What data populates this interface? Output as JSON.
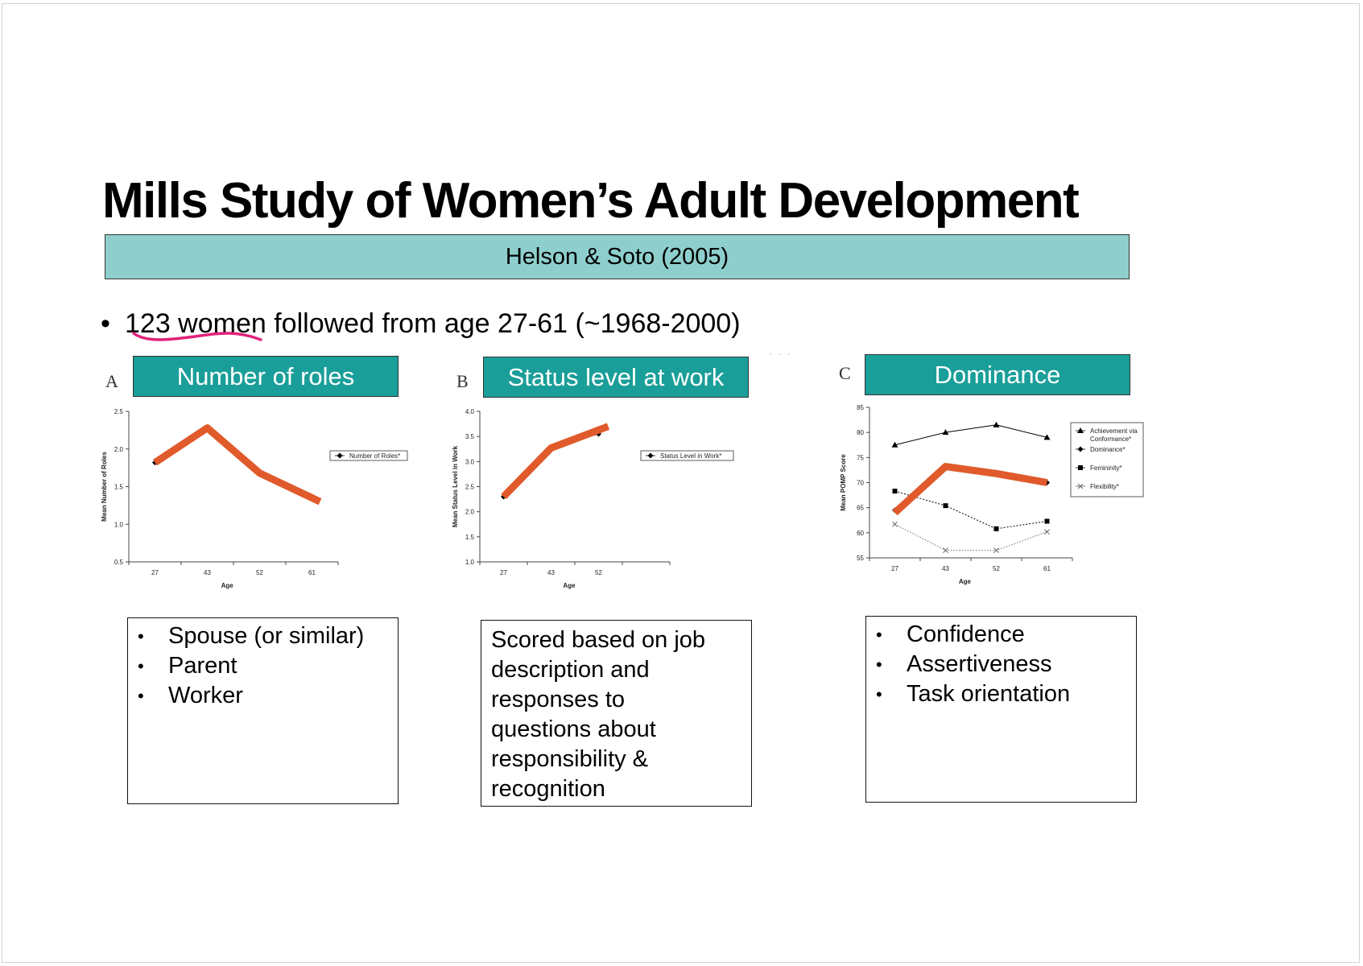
{
  "slide": {
    "title": "Mills Study of Women’s Adult Development",
    "citation": "Helson & Soto (2005)",
    "bullet_prefix": "•",
    "bullet_highlight": "123 women",
    "bullet_rest": " followed from age 27-61 (~1968-2000)",
    "annotation_color": "#e0237a",
    "accent_color": "#1a9e99",
    "banner_color": "#8ecfcd",
    "highlight_line_color": "#e05a2b"
  },
  "panels": [
    {
      "letter": "A",
      "label": "Number of roles",
      "box_items": [
        "Spouse (or similar)",
        "Parent",
        "Worker"
      ]
    },
    {
      "letter": "B",
      "label": "Status level at work",
      "box_text": [
        "Scored based on job",
        "description and",
        "responses to",
        "questions about",
        "responsibility &",
        "recognition"
      ]
    },
    {
      "letter": "C",
      "label": "Dominance",
      "box_items": [
        "Confidence",
        "Assertiveness",
        "Task orientation"
      ]
    }
  ],
  "chart_data": [
    {
      "type": "line",
      "xlabel": "Age",
      "ylabel": "Mean Number of Roles",
      "categories": [
        "27",
        "43",
        "52",
        "61"
      ],
      "yticks": [
        "0.5",
        "1.0",
        "1.5",
        "2.0",
        "2.5"
      ],
      "ylim": [
        0.5,
        2.5
      ],
      "legend": "right",
      "series": [
        {
          "name": "Number of Roles*",
          "values": [
            1.82,
            2.28,
            1.68,
            1.37
          ],
          "marker": "diamond",
          "color": "#000000"
        }
      ],
      "highlight": {
        "values": [
          1.82,
          2.28,
          1.68,
          1.3
        ]
      }
    },
    {
      "type": "line",
      "xlabel": "Age",
      "ylabel": "Mean Status Level in Work",
      "categories": [
        "27",
        "43",
        "52"
      ],
      "yticks": [
        "1.0",
        "1.5",
        "2.0",
        "2.5",
        "3.0",
        "3.5",
        "4.0"
      ],
      "ylim": [
        1.0,
        4.0
      ],
      "legend": "right",
      "series": [
        {
          "name": "Status Level in Work*",
          "values": [
            2.3,
            3.27,
            3.55
          ],
          "marker": "diamond",
          "color": "#000000"
        }
      ],
      "highlight": {
        "values": [
          2.3,
          3.27,
          3.7
        ]
      }
    },
    {
      "type": "line",
      "xlabel": "Age",
      "ylabel": "Mean POMP Score",
      "categories": [
        "27",
        "43",
        "52",
        "61"
      ],
      "yticks": [
        "55",
        "60",
        "65",
        "70",
        "75",
        "80",
        "85"
      ],
      "ylim": [
        55,
        85
      ],
      "legend": "right",
      "series": [
        {
          "name": "Achievement via Conformance*",
          "values": [
            77.5,
            80,
            81.5,
            79
          ],
          "marker": "triangle",
          "color": "#000000"
        },
        {
          "name": "Dominance*",
          "values": [
            64.5,
            73,
            72,
            70
          ],
          "marker": "diamond",
          "color": "#000000"
        },
        {
          "name": "Femininity*",
          "values": [
            68.3,
            65.4,
            60.8,
            62.3
          ],
          "marker": "square",
          "color": "#000000"
        },
        {
          "name": "Flexibility*",
          "values": [
            61.7,
            56.5,
            56.5,
            60.2
          ],
          "marker": "x",
          "color": "#666666"
        }
      ],
      "highlight": {
        "values": [
          64,
          73.2,
          71.8,
          70
        ]
      }
    }
  ]
}
